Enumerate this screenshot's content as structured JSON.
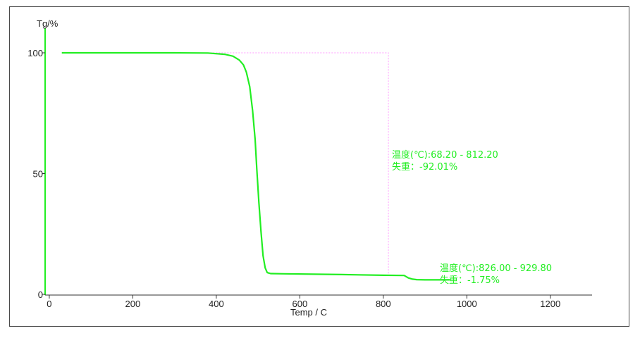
{
  "chart_data": {
    "type": "line",
    "title": "",
    "xlabel": "Temp / C",
    "ylabel": "Tg/%",
    "xlim": [
      -10,
      1300
    ],
    "ylim": [
      0,
      100
    ],
    "x_ticks": [
      0,
      200,
      400,
      600,
      800,
      1000,
      1200
    ],
    "y_ticks": [
      0,
      50,
      100
    ],
    "grid": false,
    "legend": "none",
    "colors": {
      "curve": "#22ee22",
      "y_axis": "#22ee22",
      "x_axis": "#333333",
      "bracket": "#ff99ff",
      "annotation": "#22ee22"
    },
    "series": [
      {
        "x": [
          30,
          100,
          200,
          300,
          380,
          420,
          440,
          455,
          465,
          472,
          480,
          487,
          493,
          497,
          502,
          507,
          512,
          517,
          522,
          530,
          560,
          650,
          700,
          800,
          850,
          860,
          870,
          880,
          900,
          940,
          960
        ],
        "y": [
          100,
          100,
          100,
          100,
          99.9,
          99.4,
          98.6,
          97,
          95,
          92,
          86,
          76,
          64,
          52,
          38,
          26,
          16,
          11,
          9,
          8.6,
          8.5,
          8.3,
          8.2,
          7.9,
          7.8,
          6.8,
          6.3,
          6.1,
          6.0,
          6.0,
          6.0
        ]
      }
    ],
    "bracket": {
      "x": [
        68.2,
        812.2
      ],
      "y_top": 100,
      "y_bottom": 8.0
    },
    "annotations": [
      {
        "temp_line": "温度(℃):68.20 - 812.20",
        "loss_line": "失重：-92.01%",
        "anchor_x": 812.2,
        "anchor_y": 100
      },
      {
        "temp_line": "温度(℃):826.00 - 929.80",
        "loss_line": "失重：-1.75%",
        "anchor_x": 929.8,
        "anchor_y": 6
      }
    ]
  }
}
